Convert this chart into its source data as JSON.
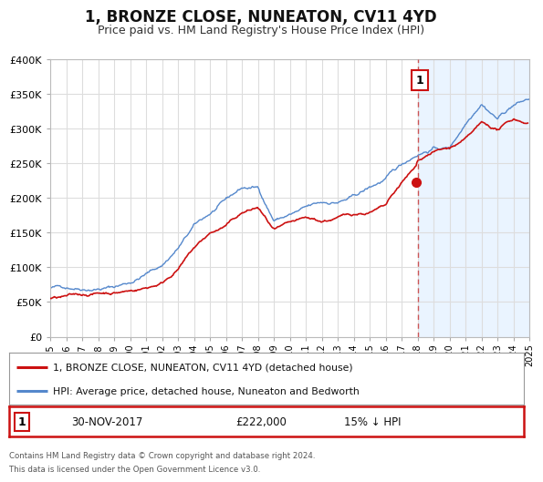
{
  "title": "1, BRONZE CLOSE, NUNEATON, CV11 4YD",
  "subtitle": "Price paid vs. HM Land Registry's House Price Index (HPI)",
  "title_fontsize": 12,
  "subtitle_fontsize": 9,
  "ylim": [
    0,
    400000
  ],
  "xlim_start": 1995,
  "xlim_end": 2025,
  "yticks": [
    0,
    50000,
    100000,
    150000,
    200000,
    250000,
    300000,
    350000,
    400000
  ],
  "ytick_labels": [
    "£0",
    "£50K",
    "£100K",
    "£150K",
    "£200K",
    "£250K",
    "£300K",
    "£350K",
    "£400K"
  ],
  "hpi_color": "#5588cc",
  "price_color": "#cc1111",
  "dot_color": "#cc1111",
  "vline_color": "#cc5555",
  "vline_x": 2018.0,
  "dot_x": 2017.92,
  "dot_y": 222000,
  "annotation_label": "1",
  "annotation_box_color": "#cc1111",
  "shade_color": "#ddeeff",
  "legend_label_price": "1, BRONZE CLOSE, NUNEATON, CV11 4YD (detached house)",
  "legend_label_hpi": "HPI: Average price, detached house, Nuneaton and Bedworth",
  "footer_line1": "Contains HM Land Registry data © Crown copyright and database right 2024.",
  "footer_line2": "This data is licensed under the Open Government Licence v3.0.",
  "info_label": "1",
  "info_date": "30-NOV-2017",
  "info_price": "£222,000",
  "info_hpi": "15% ↓ HPI",
  "background_color": "#ffffff",
  "plot_bg_color": "#ffffff",
  "grid_color": "#dddddd",
  "xticks": [
    1995,
    1996,
    1997,
    1998,
    1999,
    2000,
    2001,
    2002,
    2003,
    2004,
    2005,
    2006,
    2007,
    2008,
    2009,
    2010,
    2011,
    2012,
    2013,
    2014,
    2015,
    2016,
    2017,
    2018,
    2019,
    2020,
    2021,
    2022,
    2023,
    2024,
    2025
  ]
}
